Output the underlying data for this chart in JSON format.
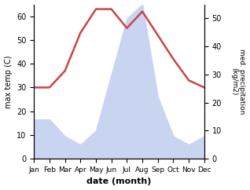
{
  "months": [
    "Jan",
    "Feb",
    "Mar",
    "Apr",
    "May",
    "Jun",
    "Jul",
    "Aug",
    "Sep",
    "Oct",
    "Nov",
    "Dec"
  ],
  "month_indices": [
    1,
    2,
    3,
    4,
    5,
    6,
    7,
    8,
    9,
    10,
    11,
    12
  ],
  "rainfall_mm": [
    14,
    14,
    8,
    5,
    10,
    30,
    50,
    55,
    22,
    8,
    5,
    8
  ],
  "temperature_c": [
    30,
    30,
    37,
    53,
    63,
    63,
    55,
    62,
    52,
    42,
    33,
    30
  ],
  "temp_ylim": [
    0,
    65
  ],
  "precip_ylim": [
    0,
    55
  ],
  "precip_scale_factor": 1.1818,
  "temp_color": "#cc4444",
  "fill_color": "#c8d4f0",
  "ylabel_left": "max temp (C)",
  "ylabel_right": "med. precipitation\n(kg/m2)",
  "xlabel": "date (month)",
  "left_yticks": [
    0,
    10,
    20,
    30,
    40,
    50,
    60
  ],
  "right_yticks": [
    0,
    10,
    20,
    30,
    40,
    50
  ],
  "background_color": "#ffffff",
  "linewidth": 1.8
}
